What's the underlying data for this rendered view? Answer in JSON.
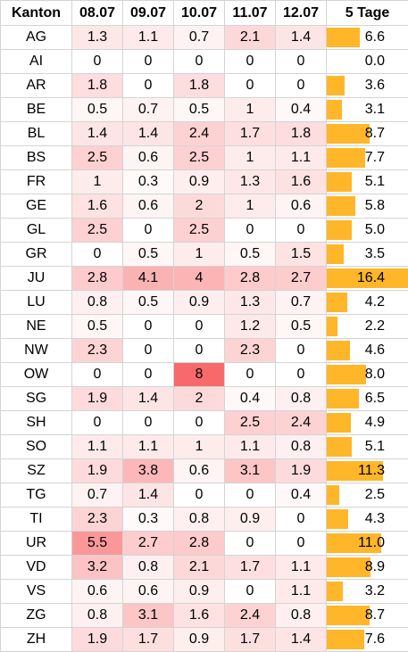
{
  "headers": [
    "Kanton",
    "08.07",
    "09.07",
    "10.07",
    "11.07",
    "12.07",
    "5 Tage"
  ],
  "colors": {
    "heat_low": "#ffffff",
    "heat_high": "#f8696b",
    "bar": "#ffb629"
  },
  "bar_max_value": 16.4,
  "heat_max_value": 8,
  "rows": [
    {
      "kanton": "AG",
      "values": [
        "1.3",
        "1.1",
        "0.7",
        "2.1",
        "1.4"
      ],
      "total": "6.6"
    },
    {
      "kanton": "AI",
      "values": [
        "0",
        "0",
        "0",
        "0",
        "0"
      ],
      "total": "0.0"
    },
    {
      "kanton": "AR",
      "values": [
        "1.8",
        "0",
        "1.8",
        "0",
        "0"
      ],
      "total": "3.6"
    },
    {
      "kanton": "BE",
      "values": [
        "0.5",
        "0.7",
        "0.5",
        "1",
        "0.4"
      ],
      "total": "3.1"
    },
    {
      "kanton": "BL",
      "values": [
        "1.4",
        "1.4",
        "2.4",
        "1.7",
        "1.8"
      ],
      "total": "8.7"
    },
    {
      "kanton": "BS",
      "values": [
        "2.5",
        "0.6",
        "2.5",
        "1",
        "1.1"
      ],
      "total": "7.7"
    },
    {
      "kanton": "FR",
      "values": [
        "1",
        "0.3",
        "0.9",
        "1.3",
        "1.6"
      ],
      "total": "5.1"
    },
    {
      "kanton": "GE",
      "values": [
        "1.6",
        "0.6",
        "2",
        "1",
        "0.6"
      ],
      "total": "5.8"
    },
    {
      "kanton": "GL",
      "values": [
        "2.5",
        "0",
        "2.5",
        "0",
        "0"
      ],
      "total": "5.0"
    },
    {
      "kanton": "GR",
      "values": [
        "0",
        "0.5",
        "1",
        "0.5",
        "1.5"
      ],
      "total": "3.5"
    },
    {
      "kanton": "JU",
      "values": [
        "2.8",
        "4.1",
        "4",
        "2.8",
        "2.7"
      ],
      "total": "16.4"
    },
    {
      "kanton": "LU",
      "values": [
        "0.8",
        "0.5",
        "0.9",
        "1.3",
        "0.7"
      ],
      "total": "4.2"
    },
    {
      "kanton": "NE",
      "values": [
        "0.5",
        "0",
        "0",
        "1.2",
        "0.5"
      ],
      "total": "2.2"
    },
    {
      "kanton": "NW",
      "values": [
        "2.3",
        "0",
        "0",
        "2.3",
        "0"
      ],
      "total": "4.6"
    },
    {
      "kanton": "OW",
      "values": [
        "0",
        "0",
        "8",
        "0",
        "0"
      ],
      "total": "8.0"
    },
    {
      "kanton": "SG",
      "values": [
        "1.9",
        "1.4",
        "2",
        "0.4",
        "0.8"
      ],
      "total": "6.5"
    },
    {
      "kanton": "SH",
      "values": [
        "0",
        "0",
        "0",
        "2.5",
        "2.4"
      ],
      "total": "4.9"
    },
    {
      "kanton": "SO",
      "values": [
        "1.1",
        "1.1",
        "1",
        "1.1",
        "0.8"
      ],
      "total": "5.1"
    },
    {
      "kanton": "SZ",
      "values": [
        "1.9",
        "3.8",
        "0.6",
        "3.1",
        "1.9"
      ],
      "total": "11.3"
    },
    {
      "kanton": "TG",
      "values": [
        "0.7",
        "1.4",
        "0",
        "0",
        "0.4"
      ],
      "total": "2.5"
    },
    {
      "kanton": "TI",
      "values": [
        "2.3",
        "0.3",
        "0.8",
        "0.9",
        "0"
      ],
      "total": "4.3"
    },
    {
      "kanton": "UR",
      "values": [
        "5.5",
        "2.7",
        "2.8",
        "0",
        "0"
      ],
      "total": "11.0"
    },
    {
      "kanton": "VD",
      "values": [
        "3.2",
        "0.8",
        "2.1",
        "1.7",
        "1.1"
      ],
      "total": "8.9"
    },
    {
      "kanton": "VS",
      "values": [
        "0.6",
        "0.6",
        "0.9",
        "0",
        "1.1"
      ],
      "total": "3.2"
    },
    {
      "kanton": "ZG",
      "values": [
        "0.8",
        "3.1",
        "1.6",
        "2.4",
        "0.8"
      ],
      "total": "8.7"
    },
    {
      "kanton": "ZH",
      "values": [
        "1.9",
        "1.7",
        "0.9",
        "1.7",
        "1.4"
      ],
      "total": "7.6"
    }
  ]
}
